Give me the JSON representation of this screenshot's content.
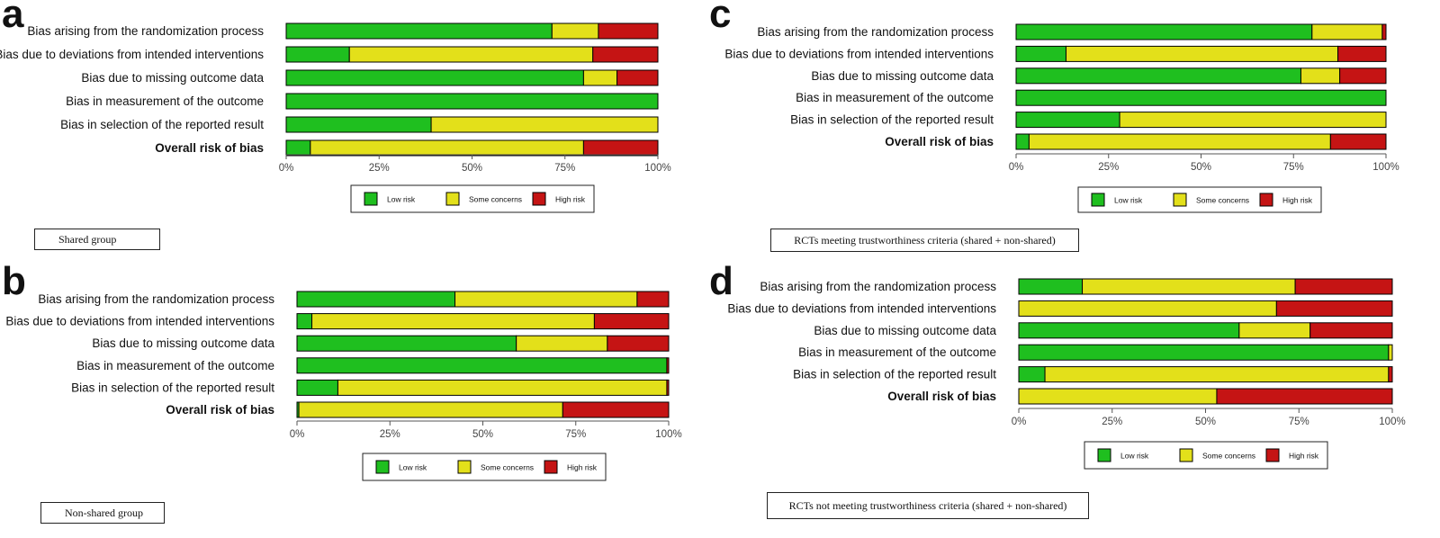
{
  "legend_labels": [
    "Low risk",
    "Some concerns",
    "High risk"
  ],
  "colors": {
    "low": "#1fbf1f",
    "some": "#e3e01a",
    "high": "#c51414"
  },
  "chart_data": [
    {
      "type": "bar",
      "panel": "a",
      "caption": "Shared group",
      "categories": [
        "Bias arising from the randomization process",
        "Bias due to deviations from intended interventions",
        "Bias due to missing outcome data",
        "Bias in measurement of the outcome",
        "Bias in selection of the reported result",
        "Overall risk of bias"
      ],
      "bold_last": true,
      "series": [
        {
          "name": "Low risk",
          "values": [
            71.5,
            17,
            80,
            100,
            39,
            6.5
          ]
        },
        {
          "name": "Some concerns",
          "values": [
            12.5,
            65.5,
            9,
            0,
            61,
            73.5
          ]
        },
        {
          "name": "High risk",
          "values": [
            16,
            17.5,
            11,
            0,
            0,
            20
          ]
        }
      ],
      "xticks": [
        "0%",
        "25%",
        "50%",
        "75%",
        "100%"
      ],
      "xlim": [
        0,
        100
      ],
      "legend_position": "bottom"
    },
    {
      "type": "bar",
      "panel": "b",
      "caption": "Non-shared group",
      "categories": [
        "Bias arising from the randomization process",
        "Bias due to deviations from intended interventions",
        "Bias due to missing outcome data",
        "Bias in measurement of the outcome",
        "Bias in selection of the reported result",
        "Overall risk of bias"
      ],
      "bold_last": true,
      "series": [
        {
          "name": "Low risk",
          "values": [
            42.5,
            4,
            59,
            99.5,
            11,
            0.5
          ]
        },
        {
          "name": "Some concerns",
          "values": [
            49,
            76,
            24.5,
            0,
            88.5,
            71
          ]
        },
        {
          "name": "High risk",
          "values": [
            8.5,
            20,
            16.5,
            0.5,
            0.5,
            28.5
          ]
        }
      ],
      "xticks": [
        "0%",
        "25%",
        "50%",
        "75%",
        "100%"
      ],
      "xlim": [
        0,
        100
      ],
      "legend_position": "bottom"
    },
    {
      "type": "bar",
      "panel": "c",
      "caption": "RCTs meeting trustworthiness criteria (shared + non-shared)",
      "categories": [
        "Bias arising from the randomization process",
        "Bias due to deviations from intended interventions",
        "Bias due to missing outcome data",
        "Bias in measurement of the outcome",
        "Bias in selection of the reported result",
        "Overall risk of bias"
      ],
      "bold_last": true,
      "series": [
        {
          "name": "Low risk",
          "values": [
            80,
            13.5,
            77,
            100,
            28,
            3.5
          ]
        },
        {
          "name": "Some concerns",
          "values": [
            19,
            73.5,
            10.5,
            0,
            72,
            81.5
          ]
        },
        {
          "name": "High risk",
          "values": [
            1,
            13,
            12.5,
            0,
            0,
            15
          ]
        }
      ],
      "xticks": [
        "0%",
        "25%",
        "50%",
        "75%",
        "100%"
      ],
      "xlim": [
        0,
        100
      ],
      "legend_position": "bottom"
    },
    {
      "type": "bar",
      "panel": "d",
      "caption": "RCTs not meeting trustworthiness criteria (shared + non-shared)",
      "categories": [
        "Bias arising from the randomization process",
        "Bias due to deviations from intended interventions",
        "Bias due to missing outcome data",
        "Bias in measurement of the outcome",
        "Bias in selection of the reported result",
        "Overall risk of bias"
      ],
      "bold_last": true,
      "series": [
        {
          "name": "Low risk",
          "values": [
            17,
            0,
            59,
            99,
            7,
            0
          ]
        },
        {
          "name": "Some concerns",
          "values": [
            57,
            69,
            19,
            1,
            92,
            53
          ]
        },
        {
          "name": "High risk",
          "values": [
            26,
            31,
            22,
            0,
            1,
            47
          ]
        }
      ],
      "xticks": [
        "0%",
        "25%",
        "50%",
        "75%",
        "100%"
      ],
      "xlim": [
        0,
        100
      ],
      "legend_position": "bottom"
    }
  ]
}
